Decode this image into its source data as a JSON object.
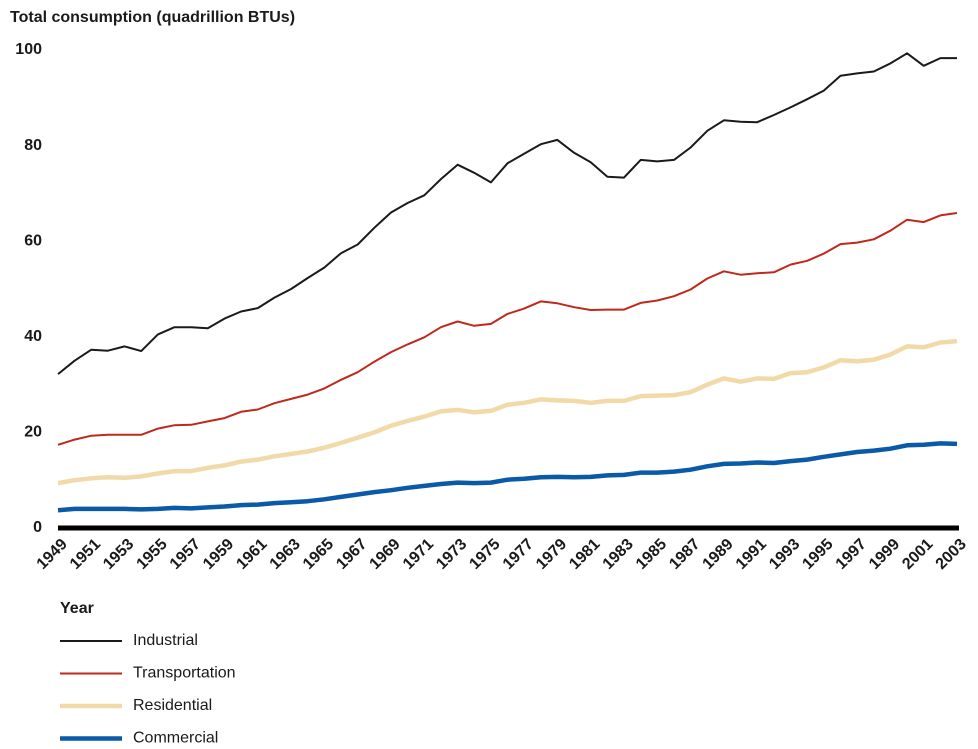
{
  "chart_data": {
    "type": "line",
    "ylabel": "Total consumption (quadrillion BTUs)",
    "xlabel": "Year",
    "x": [
      1949,
      1950,
      1951,
      1952,
      1953,
      1954,
      1955,
      1956,
      1957,
      1958,
      1959,
      1960,
      1961,
      1962,
      1963,
      1964,
      1965,
      1966,
      1967,
      1968,
      1969,
      1970,
      1971,
      1972,
      1973,
      1974,
      1975,
      1976,
      1977,
      1978,
      1979,
      1980,
      1981,
      1982,
      1983,
      1984,
      1985,
      1986,
      1987,
      1988,
      1989,
      1990,
      1991,
      1992,
      1993,
      1994,
      1995,
      1996,
      1997,
      1998,
      1999,
      2000,
      2001,
      2002,
      2003
    ],
    "xlim": [
      1949,
      2003
    ],
    "xticks": [
      1949,
      1951,
      1953,
      1955,
      1957,
      1959,
      1961,
      1963,
      1965,
      1967,
      1969,
      1971,
      1973,
      1975,
      1977,
      1979,
      1981,
      1983,
      1985,
      1987,
      1989,
      1991,
      1993,
      1995,
      1997,
      1999,
      2001,
      2003
    ],
    "ylim": [
      0,
      100
    ],
    "yticks": [
      0,
      20,
      40,
      60,
      80,
      100
    ],
    "grid": false,
    "series": [
      {
        "name": "Industrial",
        "color": "#1a1a1a",
        "line_width": 2,
        "values": [
          32.2,
          35.0,
          37.3,
          37.1,
          38.0,
          37.0,
          40.5,
          42.0,
          42.0,
          41.8,
          43.8,
          45.3,
          46.0,
          48.2,
          50.0,
          52.3,
          54.5,
          57.5,
          59.3,
          62.8,
          66.0,
          68.0,
          69.6,
          73.0,
          76.0,
          74.3,
          72.3,
          76.3,
          78.3,
          80.3,
          81.2,
          78.5,
          76.5,
          73.5,
          73.3,
          77.0,
          76.7,
          77.0,
          79.6,
          83.1,
          85.3,
          85.0,
          84.9,
          86.4,
          88.0,
          89.7,
          91.5,
          94.6,
          95.1,
          95.5,
          97.2,
          99.3,
          96.7,
          98.3,
          98.3
        ]
      },
      {
        "name": "Transportation",
        "color": "#c0281c",
        "line_width": 2,
        "values": [
          17.4,
          18.5,
          19.3,
          19.5,
          19.5,
          19.5,
          20.8,
          21.5,
          21.6,
          22.3,
          23.0,
          24.3,
          24.8,
          26.1,
          27.0,
          27.9,
          29.2,
          31.0,
          32.6,
          34.8,
          36.8,
          38.4,
          39.9,
          42.0,
          43.2,
          42.3,
          42.7,
          44.8,
          45.9,
          47.4,
          47.0,
          46.2,
          45.6,
          45.7,
          45.7,
          47.1,
          47.6,
          48.5,
          49.9,
          52.2,
          53.7,
          53.0,
          53.3,
          53.5,
          55.1,
          55.9,
          57.4,
          59.4,
          59.7,
          60.4,
          62.2,
          64.5,
          64.0,
          65.4,
          65.9
        ]
      },
      {
        "name": "Residential",
        "color": "#f2d9a8",
        "line_width": 4.5,
        "values": [
          9.4,
          10.0,
          10.4,
          10.6,
          10.5,
          10.8,
          11.4,
          11.9,
          11.9,
          12.6,
          13.1,
          13.9,
          14.3,
          15.0,
          15.5,
          16.0,
          16.8,
          17.8,
          18.9,
          20.0,
          21.4,
          22.4,
          23.3,
          24.4,
          24.7,
          24.2,
          24.5,
          25.8,
          26.2,
          26.9,
          26.7,
          26.6,
          26.2,
          26.6,
          26.6,
          27.6,
          27.7,
          27.8,
          28.4,
          30.0,
          31.3,
          30.6,
          31.3,
          31.2,
          32.4,
          32.6,
          33.6,
          35.1,
          34.9,
          35.2,
          36.3,
          38.0,
          37.8,
          38.8,
          39.1
        ]
      },
      {
        "name": "Commercial",
        "color": "#0a5aa8",
        "line_width": 4.5,
        "values": [
          3.7,
          4.0,
          4.0,
          4.0,
          4.0,
          3.9,
          4.0,
          4.2,
          4.1,
          4.3,
          4.5,
          4.8,
          4.9,
          5.2,
          5.4,
          5.6,
          6.0,
          6.5,
          7.0,
          7.5,
          7.9,
          8.4,
          8.8,
          9.2,
          9.5,
          9.4,
          9.5,
          10.1,
          10.3,
          10.6,
          10.7,
          10.6,
          10.7,
          11.0,
          11.1,
          11.6,
          11.6,
          11.8,
          12.2,
          12.9,
          13.4,
          13.5,
          13.7,
          13.6,
          14.0,
          14.3,
          14.9,
          15.4,
          15.9,
          16.2,
          16.6,
          17.3,
          17.4,
          17.7,
          17.6
        ]
      }
    ]
  }
}
